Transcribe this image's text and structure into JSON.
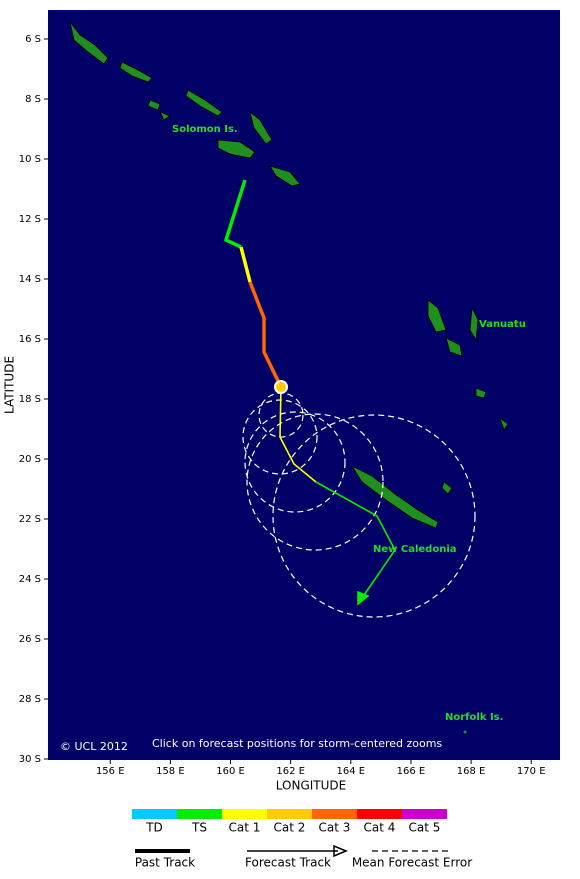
{
  "map": {
    "x_axis": {
      "label": "LONGITUDE",
      "ticks": [
        {
          "value": 156,
          "label": "156 E"
        },
        {
          "value": 158,
          "label": "158 E"
        },
        {
          "value": 160,
          "label": "160 E"
        },
        {
          "value": 162,
          "label": "162 E"
        },
        {
          "value": 164,
          "label": "164 E"
        },
        {
          "value": 166,
          "label": "166 E"
        },
        {
          "value": 168,
          "label": "168 E"
        },
        {
          "value": 170,
          "label": "170 E"
        }
      ]
    },
    "y_axis": {
      "label": "LATITUDE",
      "ticks": [
        {
          "value": -6,
          "label": "6 S"
        },
        {
          "value": -8,
          "label": "8 S"
        },
        {
          "value": -10,
          "label": "10 S"
        },
        {
          "value": -12,
          "label": "12 S"
        },
        {
          "value": -14,
          "label": "14 S"
        },
        {
          "value": -16,
          "label": "16 S"
        },
        {
          "value": -18,
          "label": "18 S"
        },
        {
          "value": -20,
          "label": "20 S"
        },
        {
          "value": -22,
          "label": "22 S"
        },
        {
          "value": -24,
          "label": "24 S"
        },
        {
          "value": -26,
          "label": "26 S"
        },
        {
          "value": -28,
          "label": "28 S"
        },
        {
          "value": -30,
          "label": "30 S"
        }
      ]
    },
    "places": [
      "Solomon Is.",
      "Vanuatu",
      "New Caledonia",
      "Norfolk Is."
    ],
    "copyright": "© UCL 2012",
    "hint": "Click on forecast positions for storm-centered zooms"
  },
  "legend": {
    "categories": [
      {
        "label": "TD",
        "color": "#00ccff"
      },
      {
        "label": "TS",
        "color": "#00ee00"
      },
      {
        "label": "Cat 1",
        "color": "#ffff00"
      },
      {
        "label": "Cat 2",
        "color": "#ffcc00"
      },
      {
        "label": "Cat 3",
        "color": "#ff6600"
      },
      {
        "label": "Cat 4",
        "color": "#ff0000"
      },
      {
        "label": "Cat 5",
        "color": "#cc00cc"
      }
    ],
    "past_track": "Past Track",
    "forecast_track": "Forecast Track",
    "error": "Mean Forecast Error"
  }
}
